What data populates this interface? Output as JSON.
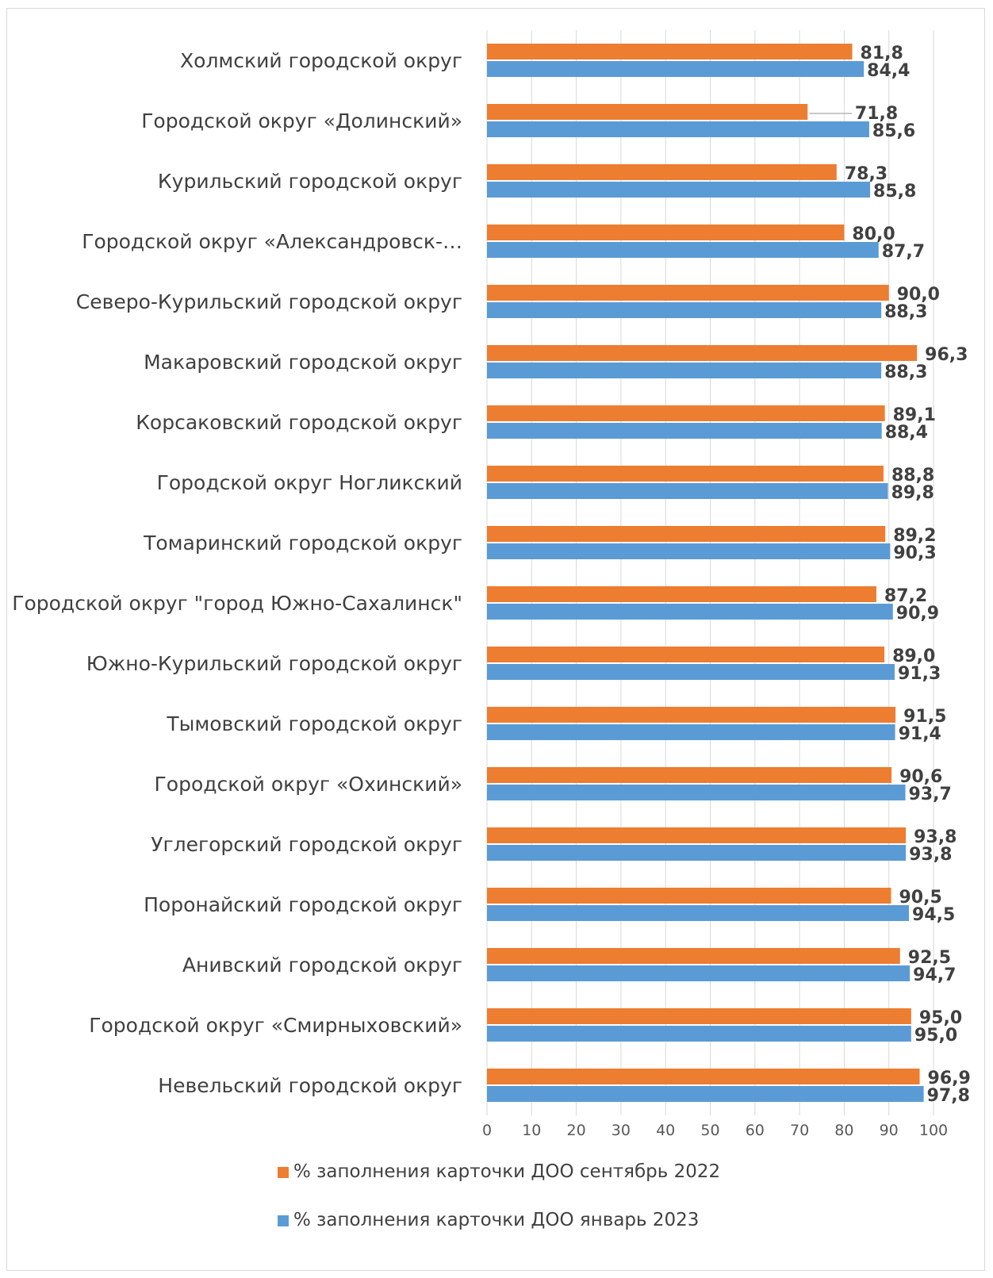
{
  "chart_data": {
    "type": "bar",
    "orientation": "horizontal",
    "categories": [
      "Холмский городской округ",
      "Городской округ «Долинский»",
      "Курильский городской округ",
      "Городской округ «Александровск-…",
      "Северо-Курильский городской округ",
      "Макаровский городской округ",
      "Корсаковский городской округ",
      "Городской округ Ногликский",
      "Томаринский городской округ",
      "Городской округ \"город Южно-Сахалинск\"",
      "Южно-Курильский городской округ",
      "Тымовский городской округ",
      "Городской округ «Охинский»",
      "Углегорский городской округ",
      "Поронайский городской округ",
      "Анивский городской округ",
      "Городской округ «Смирныховский»",
      "Невельский городской округ"
    ],
    "series": [
      {
        "name": "% заполнения карточки ДОО сентябрь 2022",
        "color": "#ED7D31",
        "values": [
          81.8,
          71.8,
          78.3,
          80.0,
          90.0,
          96.3,
          89.1,
          88.8,
          89.2,
          87.2,
          89.0,
          91.5,
          90.6,
          93.8,
          90.5,
          92.5,
          95.0,
          96.9
        ],
        "labels": [
          "81,8",
          "71,8",
          "78,3",
          "80,0",
          "90,0",
          "96,3",
          "89,1",
          "88,8",
          "89,2",
          "87,2",
          "89,0",
          "91,5",
          "90,6",
          "93,8",
          "90,5",
          "92,5",
          "95,0",
          "96,9"
        ]
      },
      {
        "name": "% заполнения карточки ДОО январь 2023",
        "color": "#5B9BD5",
        "values": [
          84.4,
          85.6,
          85.8,
          87.7,
          88.3,
          88.3,
          88.4,
          89.8,
          90.3,
          90.9,
          91.3,
          91.4,
          93.7,
          93.8,
          94.5,
          94.7,
          95.0,
          97.8
        ],
        "labels": [
          "84,4",
          "85,6",
          "85,8",
          "87,7",
          "88,3",
          "88,3",
          "88,4",
          "89,8",
          "90,3",
          "90,9",
          "91,3",
          "91,4",
          "93,7",
          "93,8",
          "94,5",
          "94,7",
          "95,0",
          "97,8"
        ]
      }
    ],
    "xlim": [
      0,
      100
    ],
    "xticks": [
      "0",
      "10",
      "20",
      "30",
      "40",
      "50",
      "60",
      "70",
      "80",
      "90",
      "100"
    ],
    "grid": true,
    "legend_position": "bottom",
    "title": "",
    "xlabel": "",
    "ylabel": ""
  }
}
